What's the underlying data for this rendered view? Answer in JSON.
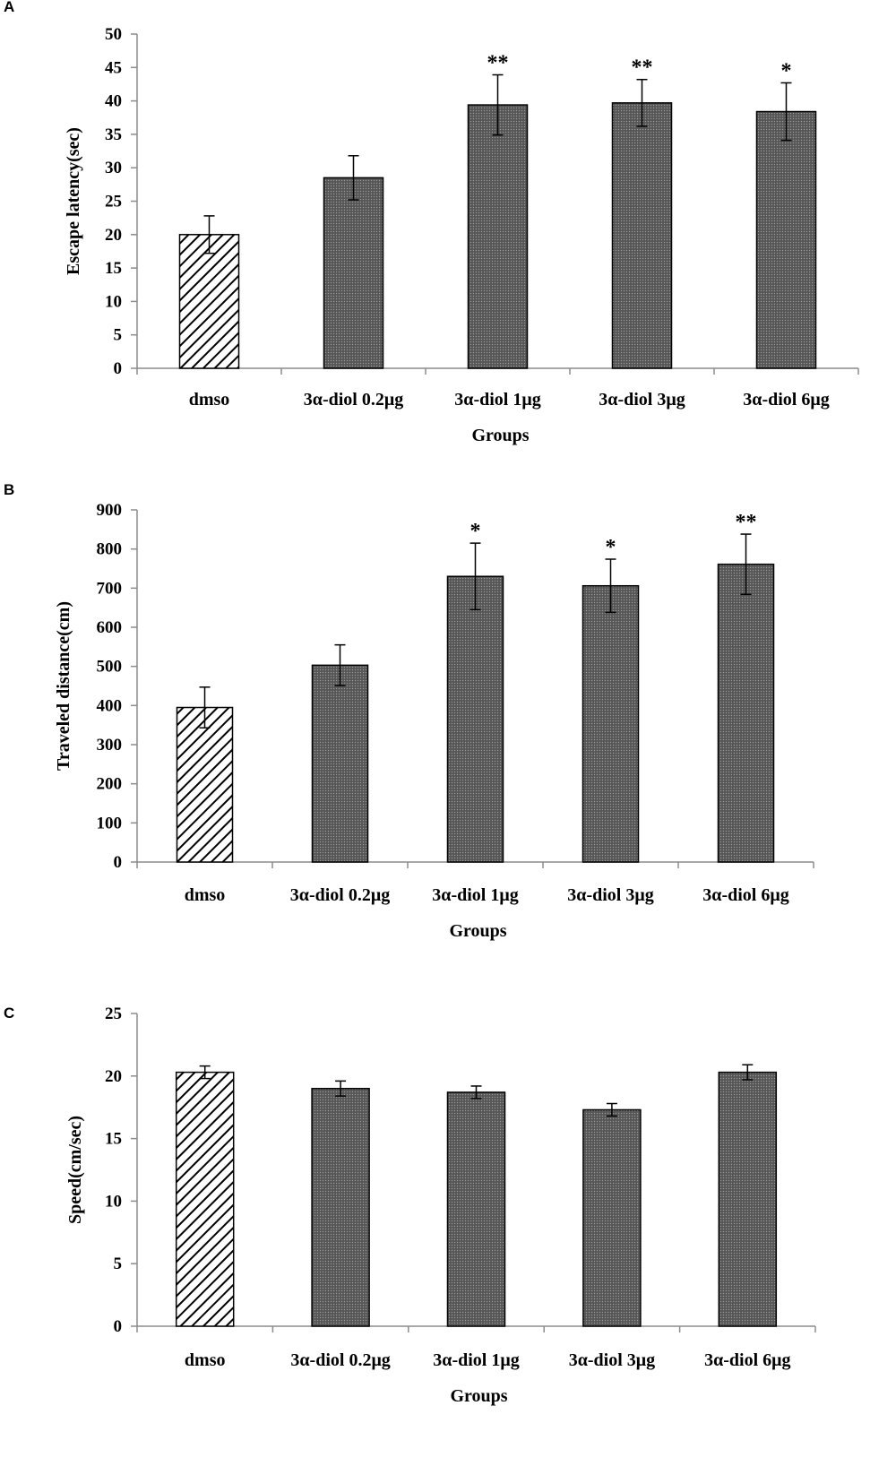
{
  "chart_data": [
    {
      "panel": "A",
      "type": "bar",
      "categories": [
        "dmso",
        "3α-diol 0.2μg",
        "3α-diol 1μg",
        "3α-diol 3μg",
        "3α-diol 6μg"
      ],
      "values": [
        20.0,
        28.5,
        39.4,
        39.7,
        38.4
      ],
      "errors": [
        2.8,
        3.3,
        4.5,
        3.5,
        4.3
      ],
      "significance": [
        "",
        "",
        "**",
        "**",
        "*"
      ],
      "xlabel": "Groups",
      "ylabel": "Escape latency(sec)",
      "ylim": [
        0,
        50
      ],
      "yticks": [
        "0",
        "5",
        "10",
        "15",
        "20",
        "25",
        "30",
        "35",
        "40",
        "45",
        "50"
      ],
      "bar_fills": [
        "hatched",
        "dark-dotted",
        "dark-dotted",
        "dark-dotted",
        "dark-dotted"
      ],
      "grid": false,
      "legend": "none"
    },
    {
      "panel": "B",
      "type": "bar",
      "categories": [
        "dmso",
        "3α-diol 0.2μg",
        "3α-diol 1μg",
        "3α-diol 3μg",
        "3α-diol 6μg"
      ],
      "values": [
        395,
        503,
        730,
        706,
        761
      ],
      "errors": [
        52,
        52,
        85,
        68,
        77
      ],
      "significance": [
        "",
        "",
        "*",
        "*",
        "**"
      ],
      "xlabel": "Groups",
      "ylabel": "Traveled distance(cm)",
      "ylim": [
        0,
        900
      ],
      "yticks": [
        "0",
        "100",
        "200",
        "300",
        "400",
        "500",
        "600",
        "700",
        "800",
        "900"
      ],
      "bar_fills": [
        "hatched",
        "dark-dotted",
        "dark-dotted",
        "dark-dotted",
        "dark-dotted"
      ],
      "grid": false,
      "legend": "none"
    },
    {
      "panel": "C",
      "type": "bar",
      "categories": [
        "dmso",
        "3α-diol 0.2μg",
        "3α-diol 1μg",
        "3α-diol 3μg",
        "3α-diol 6μg"
      ],
      "values": [
        20.3,
        19.0,
        18.7,
        17.3,
        20.3
      ],
      "errors": [
        0.5,
        0.6,
        0.5,
        0.5,
        0.6
      ],
      "significance": [
        "",
        "",
        "",
        "",
        ""
      ],
      "xlabel": "Groups",
      "ylabel": "Speed(cm/sec)",
      "ylim": [
        0,
        25
      ],
      "yticks": [
        "0",
        "5",
        "10",
        "15",
        "20",
        "25"
      ],
      "bar_fills": [
        "hatched",
        "dark-dotted",
        "dark-dotted",
        "dark-dotted",
        "dark-dotted"
      ],
      "grid": false,
      "legend": "none"
    }
  ],
  "colors": {
    "bar_dark": "#595959",
    "bar_outline": "#000000",
    "hatch_line": "#000000",
    "axis": "#8c8c8c"
  }
}
